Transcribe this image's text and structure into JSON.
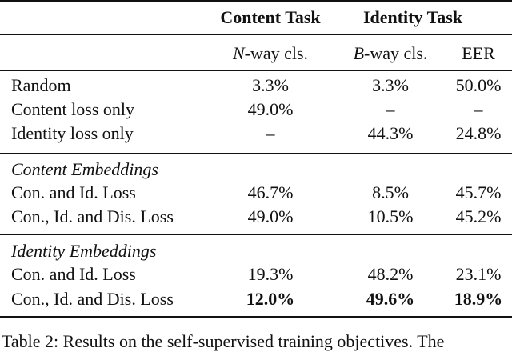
{
  "header": {
    "content_task": "Content Task",
    "identity_task": "Identity Task",
    "col1_var": "N",
    "col1_rest": "-way cls.",
    "col2_var": "B",
    "col2_rest": "-way cls.",
    "col3": "EER"
  },
  "baselines": [
    {
      "label": "Random",
      "n_way": "3.3%",
      "b_way": "3.3%",
      "eer": "50.0%"
    },
    {
      "label": "Content loss only",
      "n_way": "49.0%",
      "b_way": "–",
      "eer": "–"
    },
    {
      "label": "Identity loss only",
      "n_way": "–",
      "b_way": "44.3%",
      "eer": "24.8%"
    }
  ],
  "content_embeddings": {
    "title": "Content Embeddings",
    "rows": [
      {
        "label": "Con. and Id. Loss",
        "n_way": "46.7%",
        "b_way": "8.5%",
        "eer": "45.7%"
      },
      {
        "label": "Con., Id. and Dis. Loss",
        "n_way": "49.0%",
        "b_way": "10.5%",
        "eer": "45.2%"
      }
    ]
  },
  "identity_embeddings": {
    "title": "Identity Embeddings",
    "rows": [
      {
        "label": "Con. and Id. Loss",
        "n_way": "19.3%",
        "b_way": "48.2%",
        "eer": "23.1%"
      },
      {
        "label": "Con., Id. and Dis. Loss",
        "n_way": "12.0%",
        "b_way": "49.6%",
        "eer": "18.9%",
        "bold": true
      }
    ]
  },
  "caption": "Table 2: Results on the self-supervised training objectives. The"
}
